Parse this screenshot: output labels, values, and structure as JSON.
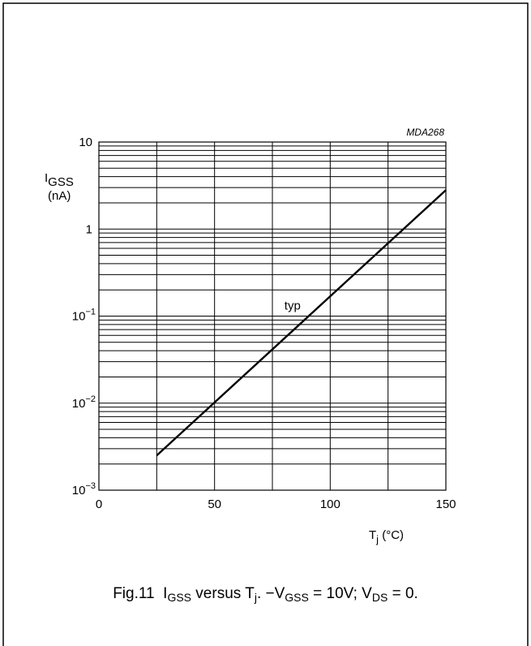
{
  "chart_data": {
    "type": "line",
    "figure_code": "MDA268",
    "ylabel": {
      "base": "I",
      "sub": "GSS",
      "unit": "(nA)"
    },
    "xlabel": {
      "base": "T",
      "sub": "j",
      "unit": " (°C)"
    },
    "xlim": [
      0,
      150
    ],
    "ylim": [
      0.001,
      10
    ],
    "yscale": "log",
    "grid": true,
    "x_ticks": [
      "0",
      "50",
      "100",
      "150"
    ],
    "y_ticks": [
      {
        "value": 10,
        "base": "10",
        "exp": ""
      },
      {
        "value": 1,
        "base": "1",
        "exp": ""
      },
      {
        "value": 0.1,
        "base": "10",
        "exp": "−1"
      },
      {
        "value": 0.01,
        "base": "10",
        "exp": "−2"
      },
      {
        "value": 0.001,
        "base": "10",
        "exp": "−3"
      }
    ],
    "series": [
      {
        "label": "typ",
        "x": [
          25,
          150
        ],
        "y": [
          0.0025,
          2.8
        ]
      }
    ]
  },
  "caption": {
    "fig": "Fig.11",
    "parts": [
      {
        "t": "I"
      },
      {
        "t": "GSS",
        "sub": true
      },
      {
        "t": " versus T"
      },
      {
        "t": "j",
        "sub": true
      },
      {
        "t": ". −V"
      },
      {
        "t": "GSS",
        "sub": true
      },
      {
        "t": " = 10V; V"
      },
      {
        "t": "DS",
        "sub": true
      },
      {
        "t": " = 0."
      }
    ]
  }
}
